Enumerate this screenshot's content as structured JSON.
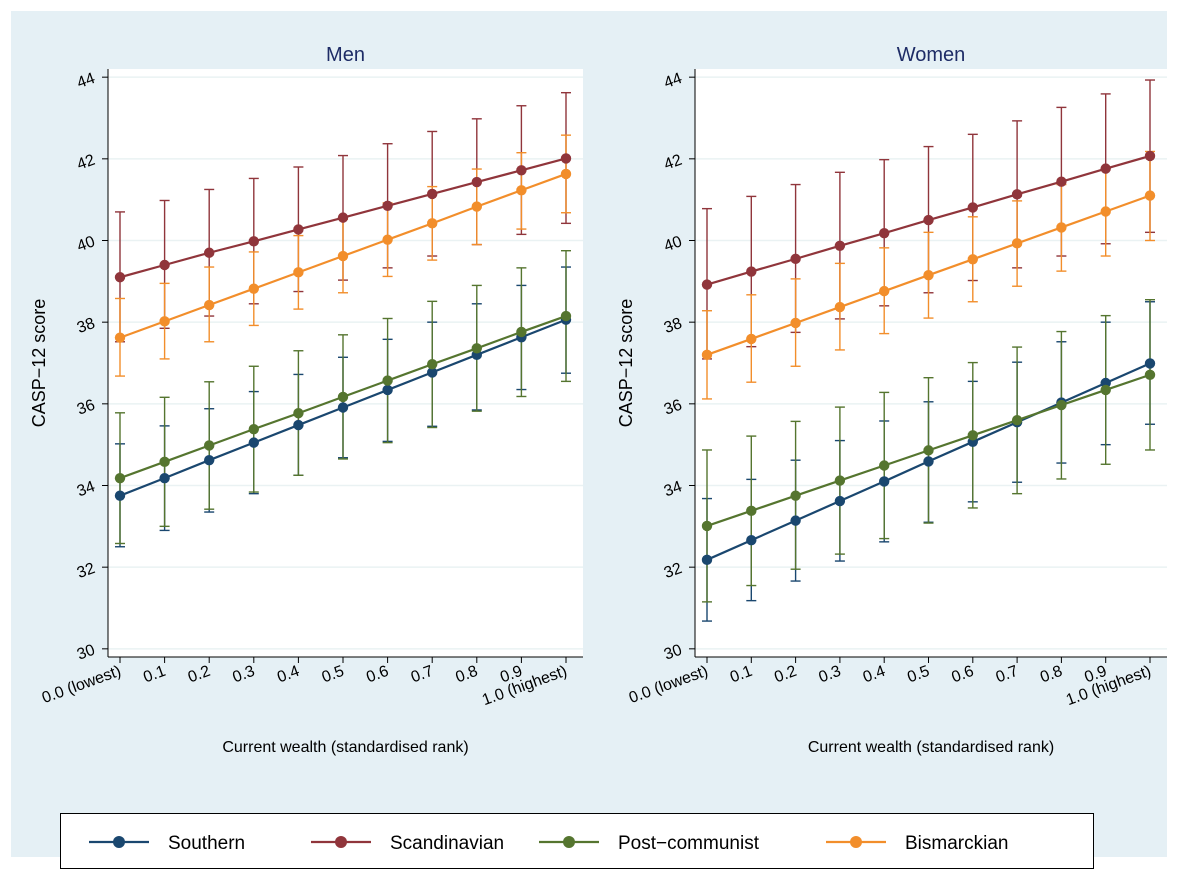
{
  "legend": [
    {
      "label": "Southern",
      "color": "#1a476f"
    },
    {
      "label": "Scandinavian",
      "color": "#90353b"
    },
    {
      "label": "Post−communist",
      "color": "#55752f"
    },
    {
      "label": "Bismarckian",
      "color": "#f28e2b"
    }
  ],
  "chart_data": [
    {
      "type": "line",
      "title": "Men",
      "xlabel": "Current wealth (standardised rank)",
      "ylabel": "CASP−12 score",
      "x": [
        0,
        0.1,
        0.2,
        0.3,
        0.4,
        0.5,
        0.6,
        0.7,
        0.8,
        0.9,
        1.0
      ],
      "x_tick_labels": [
        "0.0 (lowest)",
        "0.1",
        "0.2",
        "0.3",
        "0.4",
        "0.5",
        "0.6",
        "0.7",
        "0.8",
        "0.9",
        "1.0 (highest)"
      ],
      "ylim": [
        29.8,
        44.2
      ],
      "y_ticks": [
        30,
        32,
        34,
        36,
        38,
        40,
        42,
        44
      ],
      "grid": true,
      "legend_position": "bottom",
      "series": [
        {
          "name": "Southern",
          "color": "#1a476f",
          "values": [
            33.75,
            34.18,
            34.62,
            35.05,
            35.48,
            35.91,
            36.34,
            36.77,
            37.2,
            37.63,
            38.06
          ],
          "lower": [
            32.5,
            32.9,
            33.35,
            33.8,
            34.25,
            34.68,
            35.08,
            35.45,
            35.85,
            36.35,
            36.75
          ],
          "upper": [
            35.02,
            35.46,
            35.88,
            36.3,
            36.72,
            37.14,
            37.58,
            38.0,
            38.45,
            38.9,
            39.35
          ]
        },
        {
          "name": "Scandinavian",
          "color": "#90353b",
          "values": [
            39.1,
            39.4,
            39.7,
            39.98,
            40.27,
            40.56,
            40.85,
            41.14,
            41.43,
            41.72,
            42.01
          ],
          "lower": [
            37.52,
            37.85,
            38.15,
            38.45,
            38.75,
            39.03,
            39.33,
            39.62,
            39.9,
            40.15,
            40.42
          ],
          "upper": [
            40.7,
            40.98,
            41.25,
            41.52,
            41.8,
            42.08,
            42.37,
            42.67,
            42.98,
            43.3,
            43.62
          ]
        },
        {
          "name": "Post−communist",
          "color": "#55752f",
          "values": [
            34.18,
            34.58,
            34.98,
            35.38,
            35.77,
            36.17,
            36.57,
            36.97,
            37.36,
            37.76,
            38.15
          ],
          "lower": [
            32.58,
            33.0,
            33.42,
            33.84,
            34.25,
            34.65,
            35.05,
            35.42,
            35.82,
            36.18,
            36.55
          ],
          "upper": [
            35.78,
            36.16,
            36.54,
            36.92,
            37.3,
            37.69,
            38.09,
            38.51,
            38.9,
            39.33,
            39.75
          ]
        },
        {
          "name": "Bismarckian",
          "color": "#f28e2b",
          "values": [
            37.62,
            38.02,
            38.42,
            38.82,
            39.22,
            39.62,
            40.02,
            40.42,
            40.83,
            41.23,
            41.63
          ],
          "lower": [
            36.68,
            37.1,
            37.52,
            37.92,
            38.32,
            38.72,
            39.12,
            39.52,
            39.9,
            40.28,
            40.68
          ],
          "upper": [
            38.58,
            38.95,
            39.35,
            39.72,
            40.12,
            40.52,
            40.92,
            41.32,
            41.75,
            42.15,
            42.58
          ]
        }
      ]
    },
    {
      "type": "line",
      "title": "Women",
      "xlabel": "Current wealth (standardised rank)",
      "ylabel": "CASP−12 score",
      "x": [
        0,
        0.1,
        0.2,
        0.3,
        0.4,
        0.5,
        0.6,
        0.7,
        0.8,
        0.9,
        1.0
      ],
      "x_tick_labels": [
        "0.0 (lowest)",
        "0.1",
        "0.2",
        "0.3",
        "0.4",
        "0.5",
        "0.6",
        "0.7",
        "0.8",
        "0.9",
        "1.0 (highest)"
      ],
      "ylim": [
        29.8,
        44.2
      ],
      "y_ticks": [
        30,
        32,
        34,
        36,
        38,
        40,
        42,
        44
      ],
      "grid": true,
      "legend_position": "bottom",
      "series": [
        {
          "name": "Southern",
          "color": "#1a476f",
          "values": [
            32.18,
            32.66,
            33.14,
            33.62,
            34.1,
            34.59,
            35.07,
            35.55,
            36.03,
            36.51,
            36.99
          ],
          "lower": [
            30.68,
            31.18,
            31.66,
            32.15,
            32.62,
            33.1,
            33.6,
            34.08,
            34.55,
            35.0,
            35.5
          ],
          "upper": [
            33.68,
            34.15,
            34.62,
            35.1,
            35.58,
            36.05,
            36.55,
            37.02,
            37.52,
            38.0,
            38.5
          ]
        },
        {
          "name": "Scandinavian",
          "color": "#90353b",
          "values": [
            38.92,
            39.24,
            39.55,
            39.87,
            40.18,
            40.5,
            40.81,
            41.13,
            41.44,
            41.76,
            42.07
          ],
          "lower": [
            37.1,
            37.4,
            37.75,
            38.08,
            38.4,
            38.72,
            39.02,
            39.33,
            39.62,
            39.92,
            40.2
          ],
          "upper": [
            40.78,
            41.08,
            41.37,
            41.67,
            41.98,
            42.3,
            42.6,
            42.93,
            43.26,
            43.59,
            43.93
          ]
        },
        {
          "name": "Post−communist",
          "color": "#55752f",
          "values": [
            33.01,
            33.38,
            33.75,
            34.12,
            34.49,
            34.86,
            35.23,
            35.6,
            35.97,
            36.34,
            36.71
          ],
          "lower": [
            31.15,
            31.55,
            31.95,
            32.32,
            32.7,
            33.08,
            33.45,
            33.8,
            34.16,
            34.52,
            34.87
          ],
          "upper": [
            34.87,
            35.21,
            35.57,
            35.92,
            36.28,
            36.64,
            37.01,
            37.39,
            37.77,
            38.16,
            38.55
          ]
        },
        {
          "name": "Bismarckian",
          "color": "#f28e2b",
          "values": [
            37.2,
            37.59,
            37.98,
            38.37,
            38.76,
            39.15,
            39.54,
            39.93,
            40.32,
            40.71,
            41.1
          ],
          "lower": [
            36.12,
            36.53,
            36.92,
            37.32,
            37.72,
            38.1,
            38.5,
            38.88,
            39.25,
            39.62,
            40.0
          ],
          "upper": [
            38.28,
            38.67,
            39.06,
            39.44,
            39.82,
            40.2,
            40.58,
            40.97,
            41.37,
            41.77,
            42.18
          ]
        }
      ]
    }
  ]
}
